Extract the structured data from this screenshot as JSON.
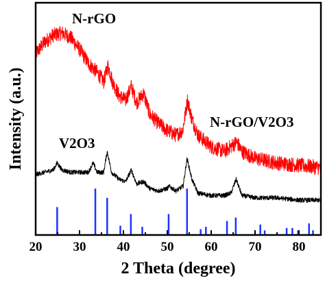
{
  "chart_data": {
    "type": "line",
    "title": "",
    "xlabel": "2 Theta (degree)",
    "ylabel": "Intensity (a.u.)",
    "xlim": [
      20,
      85
    ],
    "ylim": [
      0,
      100
    ],
    "xticks": [
      20,
      30,
      40,
      50,
      60,
      70,
      80
    ],
    "grid": false,
    "legend": "none",
    "colors": {
      "nrgo_v2o3": "#ff0000",
      "v2o3": "#000000",
      "reference": "#1a33ff",
      "frame": "#000000"
    },
    "annotations": [
      {
        "text": "N-rGO",
        "near_series": "nrgo_v2o3"
      },
      {
        "text": "N-rGO/V2O3",
        "near_series": "nrgo_v2o3"
      },
      {
        "text": "V2O3",
        "near_series": "v2o3"
      }
    ],
    "series": [
      {
        "key": "nrgo_v2o3",
        "color": "#ff0000",
        "noise": 3.2,
        "points": [
          [
            20,
            78
          ],
          [
            22,
            83
          ],
          [
            24,
            86
          ],
          [
            26,
            87
          ],
          [
            28,
            85
          ],
          [
            30,
            80
          ],
          [
            32,
            74
          ],
          [
            34,
            70
          ],
          [
            35.5,
            66
          ],
          [
            36.5,
            73
          ],
          [
            37.5,
            66
          ],
          [
            39,
            60
          ],
          [
            40.5,
            58
          ],
          [
            41.8,
            64
          ],
          [
            43,
            57
          ],
          [
            44.6,
            61
          ],
          [
            46,
            52
          ],
          [
            48,
            48
          ],
          [
            50,
            45
          ],
          [
            52,
            43
          ],
          [
            53.5,
            45
          ],
          [
            54.6,
            58
          ],
          [
            55.6,
            50
          ],
          [
            57,
            43
          ],
          [
            60,
            38
          ],
          [
            63,
            36
          ],
          [
            65.8,
            40
          ],
          [
            67,
            36
          ],
          [
            70,
            33
          ],
          [
            75,
            31
          ],
          [
            80,
            30
          ],
          [
            85,
            29
          ]
        ]
      },
      {
        "key": "v2o3",
        "color": "#000000",
        "noise": 1.0,
        "points": [
          [
            20,
            26
          ],
          [
            22,
            27
          ],
          [
            24,
            28
          ],
          [
            24.9,
            31
          ],
          [
            26,
            28
          ],
          [
            28,
            27
          ],
          [
            30,
            27
          ],
          [
            32,
            27
          ],
          [
            33.1,
            31
          ],
          [
            34,
            27
          ],
          [
            35.5,
            27
          ],
          [
            36.3,
            36
          ],
          [
            37.3,
            27
          ],
          [
            39,
            24
          ],
          [
            40.5,
            23
          ],
          [
            41.8,
            28
          ],
          [
            43,
            22
          ],
          [
            44.6,
            23
          ],
          [
            46,
            20
          ],
          [
            48,
            19
          ],
          [
            50,
            20
          ],
          [
            50.4,
            21
          ],
          [
            52,
            19
          ],
          [
            53.6,
            21
          ],
          [
            54.5,
            33
          ],
          [
            55.6,
            24
          ],
          [
            57,
            18
          ],
          [
            60,
            17
          ],
          [
            63,
            17
          ],
          [
            64.5,
            18
          ],
          [
            65.7,
            24
          ],
          [
            67,
            17
          ],
          [
            70,
            16
          ],
          [
            75,
            16
          ],
          [
            80,
            15
          ],
          [
            85,
            15
          ]
        ]
      }
    ],
    "reference_peaks": [
      {
        "x": 24.9,
        "h": 12
      },
      {
        "x": 33.6,
        "h": 20
      },
      {
        "x": 36.3,
        "h": 16
      },
      {
        "x": 39.3,
        "h": 4
      },
      {
        "x": 41.7,
        "h": 9
      },
      {
        "x": 44.3,
        "h": 3.5
      },
      {
        "x": 50.3,
        "h": 9
      },
      {
        "x": 54.5,
        "h": 20
      },
      {
        "x": 57.6,
        "h": 2.5
      },
      {
        "x": 58.8,
        "h": 3.5
      },
      {
        "x": 63.6,
        "h": 6
      },
      {
        "x": 65.6,
        "h": 7.5
      },
      {
        "x": 71.2,
        "h": 4.5
      },
      {
        "x": 72.2,
        "h": 2
      },
      {
        "x": 77.2,
        "h": 3
      },
      {
        "x": 78.5,
        "h": 3
      },
      {
        "x": 79.8,
        "h": 2
      },
      {
        "x": 82.3,
        "h": 5
      },
      {
        "x": 83.2,
        "h": 2
      }
    ]
  }
}
